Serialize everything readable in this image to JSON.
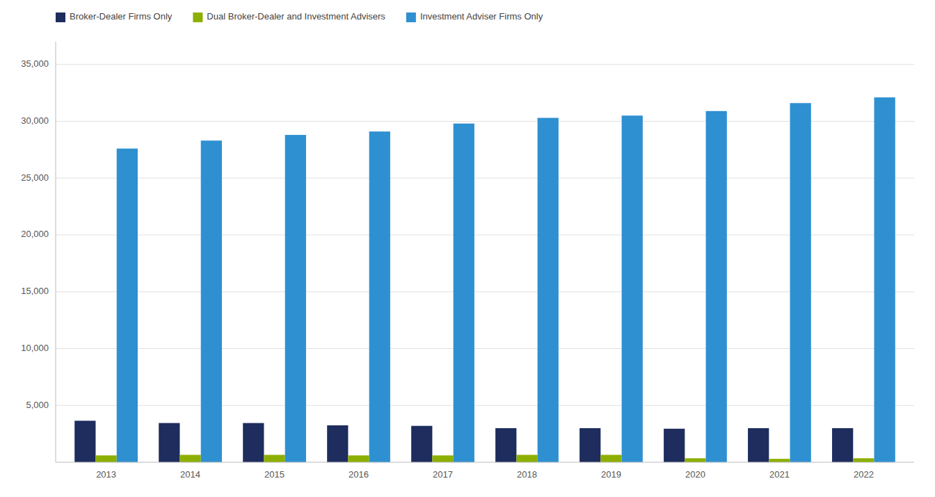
{
  "chart_data": {
    "type": "bar",
    "categories": [
      "2013",
      "2014",
      "2015",
      "2016",
      "2017",
      "2018",
      "2019",
      "2020",
      "2021",
      "2022"
    ],
    "series": [
      {
        "name": "Broker-Dealer Firms Only",
        "color": "#1e2d5e",
        "values": [
          3650,
          3450,
          3450,
          3250,
          3200,
          3000,
          3000,
          2950,
          3000,
          3000
        ]
      },
      {
        "name": "Dual Broker-Dealer and Investment Advisers",
        "color": "#8db000",
        "values": [
          600,
          650,
          650,
          600,
          600,
          650,
          650,
          350,
          300,
          350
        ]
      },
      {
        "name": "Investment Adviser Firms Only",
        "color": "#2e90d1",
        "values": [
          27600,
          28300,
          28800,
          29100,
          29800,
          30300,
          30500,
          30900,
          31600,
          32100
        ]
      }
    ],
    "ylim": [
      0,
      37000
    ],
    "yticks": [
      {
        "value": 5000,
        "label": "5,000"
      },
      {
        "value": 10000,
        "label": "10,000"
      },
      {
        "value": 15000,
        "label": "15,000"
      },
      {
        "value": 20000,
        "label": "20,000"
      },
      {
        "value": 25000,
        "label": "25,000"
      },
      {
        "value": 30000,
        "label": "30,000"
      },
      {
        "value": 35000,
        "label": "35,000"
      }
    ],
    "grid": true,
    "legend": "top"
  }
}
